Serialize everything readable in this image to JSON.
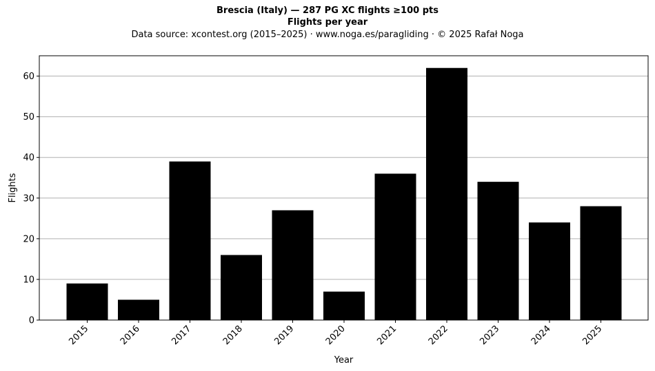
{
  "title_line1": "Brescia (Italy)  —  287 PG XC flights ≥100 pts",
  "title_line2": "Flights per year",
  "subtitle": "Data source: xcontest.org (2015–2025)  ·  www.noga.es/paragliding  ·  © 2025 Rafał Noga",
  "chart_data": {
    "type": "bar",
    "categories": [
      "2015",
      "2016",
      "2017",
      "2018",
      "2019",
      "2020",
      "2021",
      "2022",
      "2023",
      "2024",
      "2025"
    ],
    "values": [
      9,
      5,
      39,
      16,
      27,
      7,
      36,
      62,
      34,
      24,
      28
    ],
    "xlabel": "Year",
    "ylabel": "Flights",
    "ylim": [
      0,
      65
    ],
    "yticks": [
      0,
      10,
      20,
      30,
      40,
      50,
      60
    ],
    "grid": "horizontal",
    "bar_color": "#000000",
    "grid_color": "#b0b0b0"
  }
}
